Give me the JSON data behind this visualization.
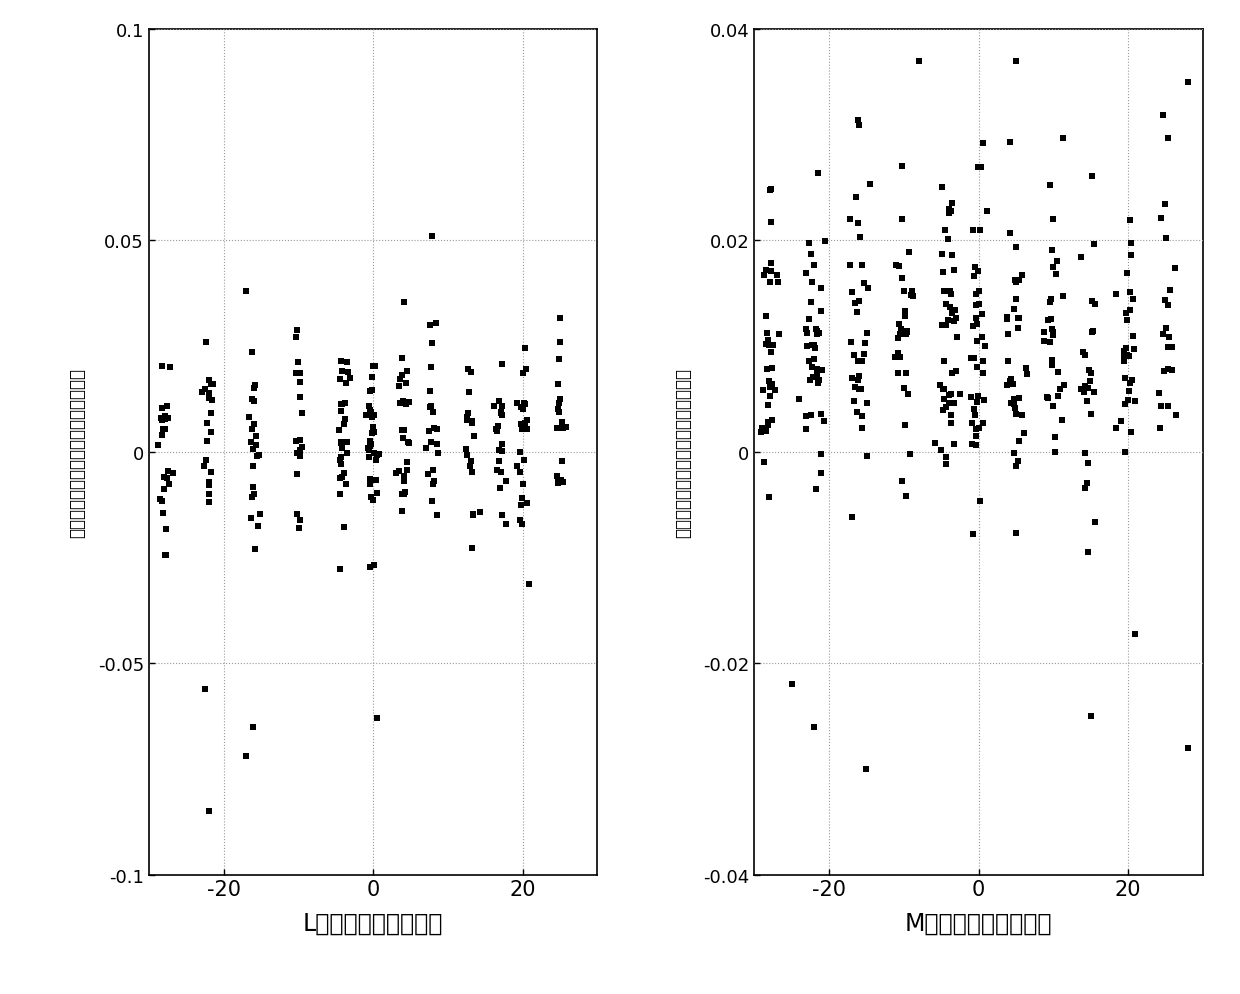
{
  "left_xlabel": "L基线测量角度（度）",
  "right_xlabel": "M基线测量角度（度）",
  "left_ylabel": "理论观测值与实际观测值的差异（度）",
  "right_ylabel": "理论观测值与实际观测值的差异（度）",
  "left_xlim": [
    -30,
    30
  ],
  "right_xlim": [
    -30,
    30
  ],
  "left_ylim": [
    -0.1,
    0.1
  ],
  "right_ylim": [
    -0.04,
    0.04
  ],
  "left_yticks": [
    -0.1,
    -0.05,
    0,
    0.05,
    0.1
  ],
  "right_yticks": [
    -0.04,
    -0.02,
    0,
    0.02,
    0.04
  ],
  "left_xticks": [
    -20,
    0,
    20
  ],
  "right_xticks": [
    -20,
    0,
    20
  ],
  "marker_color": "black",
  "marker_size": 18,
  "bg_color": "white",
  "grid_color": "#999999",
  "fig_width": 12.4,
  "fig_height": 9.95,
  "dpi": 100
}
